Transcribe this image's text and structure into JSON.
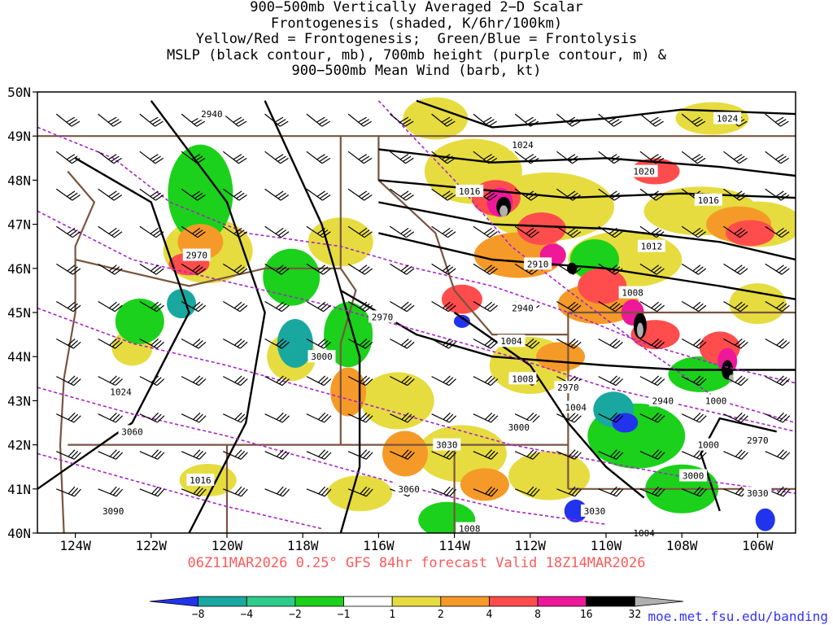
{
  "title": {
    "lines": [
      "900−500mb Vertically Averaged 2−D Scalar",
      "Frontogenesis (shaded, K/6hr/100km)",
      "Yellow/Red = Frontogenesis;  Green/Blue = Frontolysis",
      "MSLP (black contour, mb), 700mb height (purple contour, m) &",
      "900−500mb Mean Wind (barb, kt)"
    ]
  },
  "axes": {
    "lat_ticks": [
      "50N",
      "49N",
      "48N",
      "47N",
      "46N",
      "45N",
      "44N",
      "43N",
      "42N",
      "41N",
      "40N"
    ],
    "lon_ticks": [
      "124W",
      "122W",
      "120W",
      "118W",
      "116W",
      "114W",
      "112W",
      "110W",
      "108W",
      "106W"
    ],
    "lat_range": [
      40,
      50
    ],
    "lon_range": [
      -125,
      -105
    ]
  },
  "footer": "06Z11MAR2026 0.25° GFS 84hr forecast Valid 18Z14MAR2026",
  "credit": "moe.met.fsu.edu/banding",
  "colorbar": {
    "ticks": [
      "−8",
      "−4",
      "−2",
      "−1",
      "1",
      "2",
      "4",
      "8",
      "16",
      "32"
    ],
    "colors": [
      "#2233ee",
      "#19a8a0",
      "#2ecc8a",
      "#1bd11b",
      "#ffffff",
      "#e6dc40",
      "#f59a28",
      "#ff4d4d",
      "#ee1899",
      "#000000",
      "#b0b0b0"
    ]
  },
  "contour_labels": {
    "mslp": [
      "1024",
      "1024",
      "1020",
      "1016",
      "1016",
      "1012",
      "1008",
      "1004",
      "1008",
      "1004",
      "1000",
      "1000",
      "1024",
      "1016",
      "1008",
      "1004"
    ],
    "height700": [
      "2940",
      "2970",
      "2910",
      "2940",
      "2970",
      "3000",
      "2940",
      "2970",
      "3000",
      "3030",
      "3000",
      "2970",
      "3060",
      "3030",
      "3060",
      "3090",
      "3030"
    ]
  }
}
